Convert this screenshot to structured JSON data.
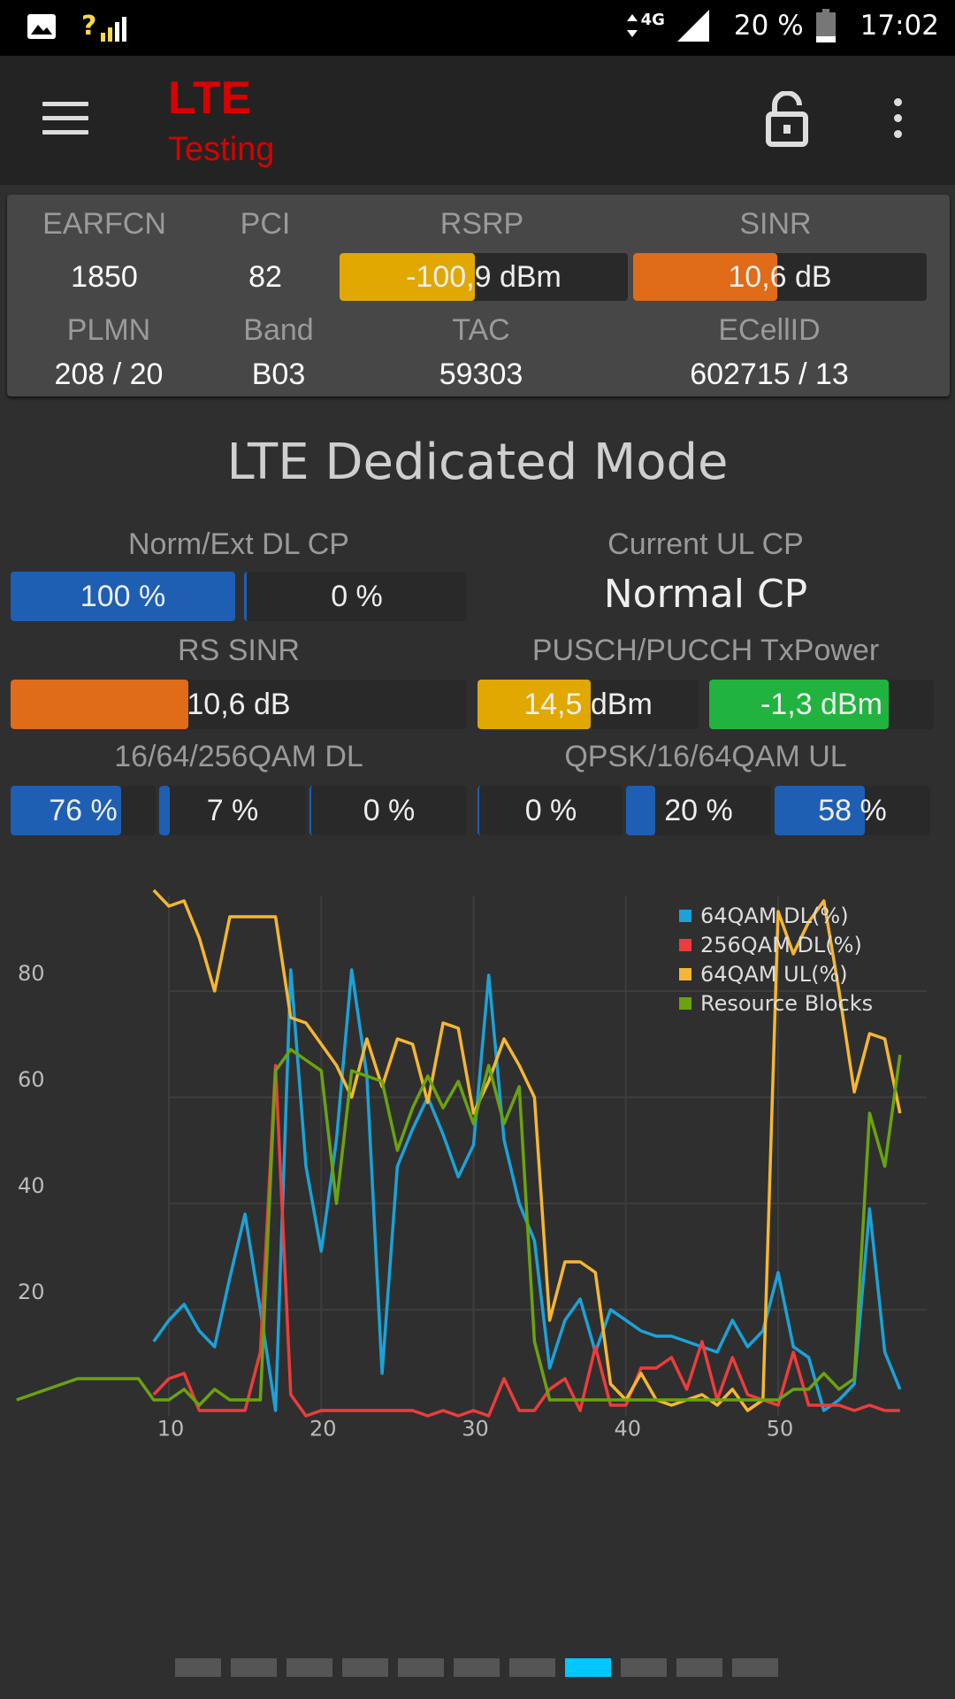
{
  "status_bar": {
    "signal_label": "?",
    "network": "4G",
    "battery": "20 %",
    "time": "17:02"
  },
  "app_bar": {
    "title": "LTE",
    "subtitle": "Testing"
  },
  "info_panel": {
    "earfcn_label": "EARFCN",
    "earfcn": "1850",
    "pci_label": "PCI",
    "pci": "82",
    "rsrp_label": "RSRP",
    "rsrp": "-100,9 dBm",
    "rsrp_fill": 0.47,
    "sinr_label": "SINR",
    "sinr": "10,6 dB",
    "sinr_fill": 0.49,
    "plmn_label": "PLMN",
    "plmn": "208 / 20",
    "band_label": "Band",
    "band": "B03",
    "tac_label": "TAC",
    "tac": "59303",
    "ecellid_label": "ECellID",
    "ecellid": "602715 / 13"
  },
  "mode": {
    "title": "LTE Dedicated Mode",
    "dl_cp_label": "Norm/Ext DL CP",
    "dl_cp_norm": "100 %",
    "dl_cp_ext": "0 %",
    "ul_cp_label": "Current UL CP",
    "ul_cp": "Normal CP",
    "rs_sinr_label": "RS SINR",
    "rs_sinr": "10,6 dB",
    "rs_sinr_fill": 0.39,
    "txpower_label": "PUSCH/PUCCH TxPower",
    "pusch": "14,5 dBm",
    "pusch_fill": 0.51,
    "pucch": "-1,3 dBm",
    "pucch_fill": 0.8,
    "qam_dl_label": "16/64/256QAM DL",
    "qam16_dl": "76 %",
    "qam64_dl": "7 %",
    "qam256_dl": "0 %",
    "qam_ul_label": "QPSK/16/64QAM UL",
    "qpsk_ul": "0 %",
    "qam16_ul": "20 %",
    "qam64_ul": "58 %"
  },
  "colors": {
    "blue": "#1e5fb4",
    "orange": "#e06b18",
    "yellow": "#e0a800",
    "green": "#21b33f",
    "title_red": "#d90000",
    "active_page": "#00c8ff"
  },
  "chart_data": {
    "type": "line",
    "xlim": [
      0,
      58
    ],
    "ylim": [
      0,
      100
    ],
    "x_ticks": [
      "10",
      "20",
      "30",
      "40",
      "50"
    ],
    "y_ticks": [
      "20",
      "40",
      "60",
      "80"
    ],
    "grid": true,
    "legend_position": "top-right",
    "series": [
      {
        "name": "64QAM DL(%)",
        "color": "#1aa3d9",
        "x": [
          9,
          10,
          11,
          12,
          13,
          14,
          15,
          16,
          17,
          18,
          19,
          20,
          21,
          22,
          23,
          24,
          25,
          26,
          27,
          28,
          29,
          30,
          31,
          32,
          33,
          34,
          35,
          36,
          37,
          38,
          39,
          40,
          41,
          42,
          43,
          44,
          45,
          46,
          47,
          48,
          49,
          50,
          51,
          52,
          53,
          54,
          55,
          56,
          57,
          58
        ],
        "y": [
          14,
          18,
          21,
          16,
          13,
          26,
          38,
          20,
          1,
          84,
          47,
          31,
          52,
          84,
          64,
          8,
          47,
          54,
          60,
          53,
          45,
          51,
          83,
          52,
          40,
          33,
          9,
          18,
          22,
          12,
          20,
          18,
          16,
          15,
          15,
          14,
          13,
          12,
          18,
          13,
          16,
          27,
          13,
          11,
          1,
          3,
          6,
          39,
          12,
          5
        ]
      },
      {
        "name": "256QAM DL(%)",
        "color": "#ee3c3c",
        "x": [
          9,
          10,
          11,
          12,
          13,
          14,
          15,
          16,
          17,
          18,
          19,
          20,
          21,
          22,
          23,
          24,
          25,
          26,
          27,
          28,
          29,
          30,
          31,
          32,
          33,
          34,
          35,
          36,
          37,
          38,
          39,
          40,
          41,
          42,
          43,
          44,
          45,
          46,
          47,
          48,
          49,
          50,
          51,
          52,
          53,
          54,
          55,
          56,
          57,
          58
        ],
        "y": [
          4,
          7,
          8,
          1,
          1,
          1,
          1,
          12,
          66,
          4,
          0,
          1,
          1,
          1,
          1,
          1,
          1,
          1,
          0,
          1,
          0,
          1,
          0,
          7,
          1,
          1,
          5,
          7,
          1,
          13,
          2,
          2,
          9,
          9,
          11,
          5,
          14,
          3,
          11,
          4,
          3,
          2,
          12,
          2,
          2,
          2,
          1,
          2,
          1,
          1
        ]
      },
      {
        "name": "64QAM UL(%)",
        "color": "#f5b731",
        "x": [
          9,
          10,
          11,
          12,
          13,
          14,
          15,
          16,
          17,
          18,
          19,
          20,
          21,
          22,
          23,
          24,
          25,
          26,
          27,
          28,
          29,
          30,
          31,
          32,
          33,
          34,
          35,
          36,
          37,
          38,
          39,
          40,
          41,
          42,
          43,
          44,
          45,
          46,
          47,
          48,
          49,
          50,
          51,
          52,
          53,
          54,
          55,
          56,
          57,
          58
        ],
        "y": [
          99,
          96,
          97,
          90,
          80,
          94,
          94,
          94,
          94,
          75,
          74,
          70,
          66,
          60,
          71,
          62,
          71,
          70,
          59,
          74,
          73,
          57,
          63,
          71,
          66,
          60,
          18,
          29,
          29,
          27,
          6,
          3,
          8,
          3,
          2,
          3,
          4,
          2,
          5,
          1,
          3,
          95,
          87,
          93,
          97,
          80,
          61,
          72,
          71,
          57
        ]
      },
      {
        "name": "Resource Blocks",
        "color": "#6aa30e",
        "x": [
          0,
          2,
          4,
          6,
          8,
          9,
          10,
          11,
          12,
          13,
          14,
          15,
          16,
          17,
          18,
          19,
          20,
          21,
          22,
          23,
          24,
          25,
          26,
          27,
          28,
          29,
          30,
          31,
          32,
          33,
          34,
          35,
          36,
          37,
          38,
          39,
          40,
          41,
          42,
          43,
          44,
          45,
          46,
          47,
          48,
          49,
          50,
          51,
          52,
          53,
          54,
          55,
          56,
          57,
          58
        ],
        "y": [
          3,
          5,
          7,
          7,
          7,
          3,
          3,
          5,
          2,
          5,
          3,
          3,
          3,
          65,
          69,
          67,
          65,
          40,
          65,
          64,
          63,
          50,
          58,
          64,
          58,
          63,
          55,
          66,
          55,
          62,
          14,
          3,
          3,
          3,
          3,
          3,
          3,
          3,
          3,
          3,
          3,
          3,
          3,
          3,
          3,
          3,
          3,
          5,
          5,
          8,
          5,
          7,
          57,
          47,
          68
        ]
      }
    ]
  },
  "pager": {
    "count": 11,
    "active_index": 7
  }
}
